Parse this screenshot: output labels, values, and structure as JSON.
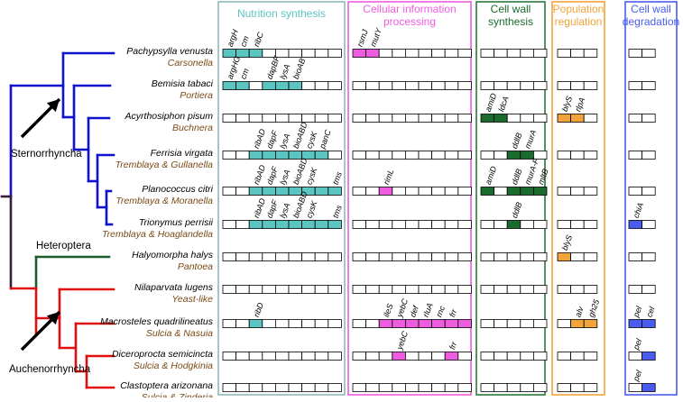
{
  "colors": {
    "host_branch": "#1010d0",
    "heteroptera_branch": "#1a5c2a",
    "auchenorrhyncha_branch": "#e01010",
    "root_branch": "#3a1a40",
    "symbiont_text": "#7a4a14",
    "nutrition": "#5bc5c2",
    "cellular": "#ee5ce0",
    "cellwall_syn": "#1a6b2e",
    "population": "#f2a33a",
    "degradation": "#4a5cf0",
    "empty_cell": "#ffffff"
  },
  "clades": {
    "sternorrhyncha": "Sternorrhyncha",
    "heteroptera": "Heteroptera",
    "auchenorrhyncha": "Auchenorrhyncha"
  },
  "categories": [
    {
      "key": "nutrition",
      "title_lines": [
        "Nutrition synthesis"
      ],
      "cells": 9,
      "color_key": "nutrition",
      "border": "#8fb8c0"
    },
    {
      "key": "cellular",
      "title_lines": [
        "Cellular information",
        "processing"
      ],
      "cells": 9,
      "color_key": "cellular",
      "border": "#ee5ce0"
    },
    {
      "key": "cellwall_syn",
      "title_lines": [
        "Cell wall",
        "synthesis"
      ],
      "cells": 5,
      "color_key": "cellwall_syn",
      "border": "#2a7a3a"
    },
    {
      "key": "population",
      "title_lines": [
        "Population",
        "regulation"
      ],
      "cells": 3,
      "color_key": "population",
      "border": "#f2a33a"
    },
    {
      "key": "degradation",
      "title_lines": [
        "Cell wall",
        "degradation"
      ],
      "cells": 2,
      "color_key": "degradation",
      "border": "#4a5cf0"
    }
  ],
  "rows": [
    {
      "host": "Pachypsylla venusta",
      "symbiont": "Carsonella",
      "filled": {
        "nutrition": [
          0,
          1,
          2
        ],
        "cellular": [
          0,
          1
        ],
        "cellwall_syn": [],
        "population": [],
        "degradation": []
      },
      "genes": {
        "nutrition": [
          "argH",
          "cm",
          "ribC"
        ],
        "cellular": [
          "rsmJ",
          "mutY"
        ]
      }
    },
    {
      "host": "Bemisia tabaci",
      "symbiont": "Portiera",
      "filled": {
        "nutrition": [
          0,
          1,
          3,
          4,
          5
        ],
        "cellular": [],
        "cellwall_syn": [],
        "population": [],
        "degradation": []
      },
      "genes": {
        "nutrition": [
          "argHG",
          "cm",
          "",
          "dapBF",
          "lysA",
          "bioAB"
        ]
      }
    },
    {
      "host": "Acyrthosiphon pisum",
      "symbiont": "Buchnera",
      "filled": {
        "nutrition": [],
        "cellular": [],
        "cellwall_syn": [
          0,
          1
        ],
        "population": [
          0,
          1
        ],
        "degradation": []
      },
      "genes": {
        "cellwall_syn": [
          "amiD",
          "ldcA"
        ],
        "population": [
          "blyS",
          "rlpA"
        ]
      }
    },
    {
      "host": "Ferrisia virgata",
      "symbiont": "Tremblaya & Gullanella",
      "filled": {
        "nutrition": [
          2,
          3,
          4,
          5,
          6,
          7
        ],
        "cellular": [],
        "cellwall_syn": [
          2,
          3
        ],
        "population": [],
        "degradation": []
      },
      "genes": {
        "nutrition": [
          "",
          "",
          "ribAD",
          "dapF",
          "lysA",
          "bioABD",
          "cysK",
          "panC"
        ],
        "cellwall_syn": [
          "",
          "",
          "ddlB",
          "murA"
        ]
      }
    },
    {
      "host": "Planococcus citri",
      "symbiont": "Tremblaya & Moranella",
      "filled": {
        "nutrition": [
          2,
          3,
          4,
          5,
          6,
          7,
          8
        ],
        "cellular": [
          2
        ],
        "cellwall_syn": [
          0,
          2,
          3,
          4
        ],
        "population": [],
        "degradation": []
      },
      "genes": {
        "nutrition": [
          "",
          "",
          "ribAD",
          "dapF",
          "lysA",
          "bioABD",
          "cysK",
          "",
          "tms"
        ],
        "cellular": [
          "",
          "",
          "rimL"
        ],
        "cellwall_syn": [
          "amiD",
          "",
          "ddlB",
          "murA-F",
          "mltB"
        ]
      }
    },
    {
      "host": "Trionymus perrisii",
      "symbiont": "Tremblaya & Hoaglandella",
      "filled": {
        "nutrition": [
          2,
          3,
          4,
          5,
          6,
          7,
          8
        ],
        "cellular": [],
        "cellwall_syn": [
          2
        ],
        "population": [],
        "degradation": [
          0
        ]
      },
      "genes": {
        "nutrition": [
          "",
          "",
          "ribAD",
          "dapF",
          "lysA",
          "bioABD",
          "cysK",
          "",
          "tms"
        ],
        "cellwall_syn": [
          "",
          "",
          "ddlB"
        ],
        "degradation": [
          "chiA"
        ]
      }
    },
    {
      "host": "Halyomorpha halys",
      "symbiont": "Pantoea",
      "filled": {
        "nutrition": [],
        "cellular": [],
        "cellwall_syn": [],
        "population": [
          0
        ],
        "degradation": []
      },
      "genes": {
        "population": [
          "blyS"
        ]
      }
    },
    {
      "host": "Nilaparvata lugens",
      "symbiont": "Yeast-like",
      "filled": {
        "nutrition": [],
        "cellular": [],
        "cellwall_syn": [],
        "population": [],
        "degradation": []
      },
      "genes": {}
    },
    {
      "host": "Macrosteles quadrilineatus",
      "symbiont": "Sulcia & Nasuia",
      "filled": {
        "nutrition": [
          2
        ],
        "cellular": [
          2,
          3,
          4,
          5,
          6,
          7,
          8
        ],
        "cellwall_syn": [],
        "population": [
          1,
          2
        ],
        "degradation": [
          0,
          1
        ]
      },
      "genes": {
        "nutrition": [
          "",
          "",
          "ribD"
        ],
        "cellular": [
          "",
          "",
          "ileS",
          "yebC",
          "def",
          "rluA",
          "rnc",
          "frr"
        ],
        "population": [
          "",
          "alv",
          "gh25"
        ],
        "degradation": [
          "pel",
          "cel"
        ]
      }
    },
    {
      "host": "Diceroprocta semicincta",
      "symbiont": "Sulcia & Hodgkinia",
      "filled": {
        "nutrition": [],
        "cellular": [
          3,
          7
        ],
        "cellwall_syn": [],
        "population": [],
        "degradation": [
          1
        ]
      },
      "genes": {
        "cellular": [
          "",
          "",
          "",
          "yebC",
          "",
          "",
          "",
          "frr"
        ],
        "degradation": [
          "pel"
        ]
      }
    },
    {
      "host": "Clastoptera arizonana",
      "symbiont": "Sulcia & Zinderia",
      "filled": {
        "nutrition": [],
        "cellular": [],
        "cellwall_syn": [],
        "population": [],
        "degradation": [
          1
        ]
      },
      "genes": {
        "degradation": [
          "pel"
        ]
      }
    }
  ]
}
